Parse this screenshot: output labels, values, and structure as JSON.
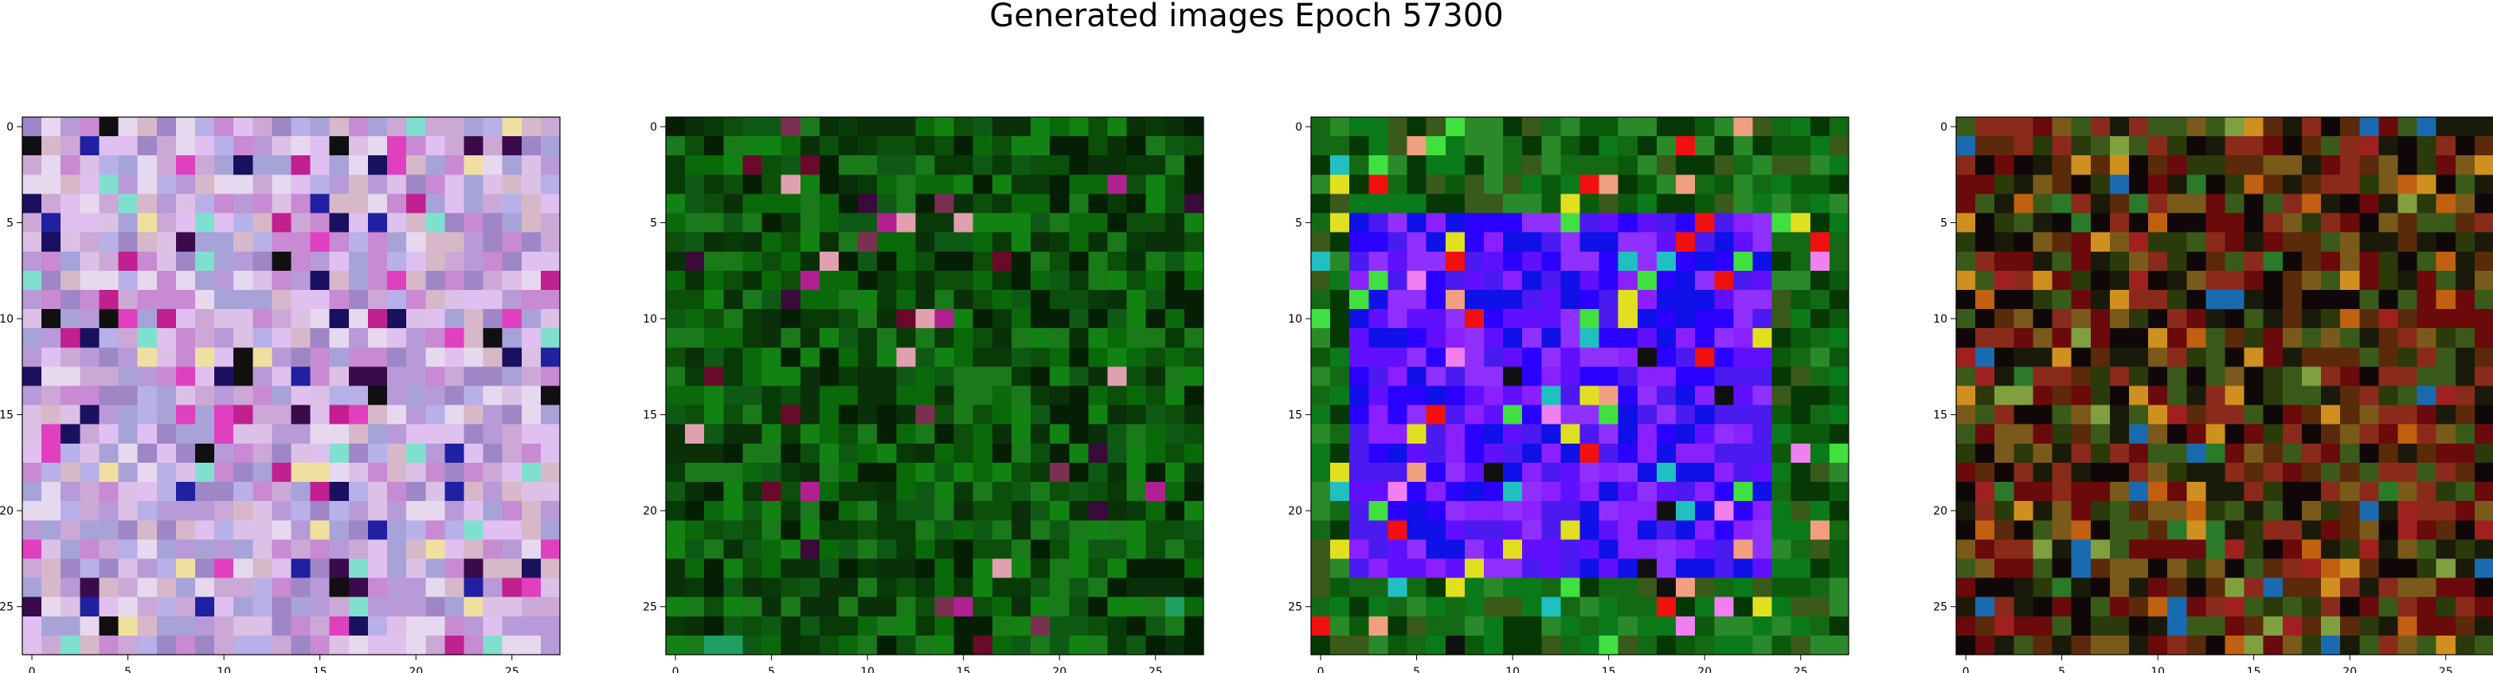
{
  "figure": {
    "title": "Generated images Epoch 57300"
  },
  "chart_data": [
    {
      "type": "heatmap",
      "title": "",
      "xlabel": "",
      "ylabel": "",
      "grid_size": [
        28,
        28
      ],
      "xlim": [
        -0.5,
        27.5
      ],
      "ylim": [
        27.5,
        -0.5
      ],
      "xticks": [
        0,
        5,
        10,
        15,
        20,
        25
      ],
      "yticks": [
        0,
        5,
        10,
        15,
        20,
        25
      ],
      "grid": false,
      "legend": "none",
      "palette": [
        "#cca8d6",
        "#a7a3d9",
        "#dcc0e6",
        "#c88ad2",
        "#b8b0e8",
        "#e6d8ee",
        "#9e86c7",
        "#d6b8c8",
        "#b89ad8",
        "#e0c0f0"
      ],
      "accent_colors": [
        "#1a1060",
        "#3a0a4a",
        "#e040c0",
        "#80e0d0",
        "#101010",
        "#2020a0",
        "#f0e0a0",
        "#c02090"
      ],
      "accent_density": 0.18,
      "description": "noisy pastel pink/lavender/light-blue pixels with scattered dark navy and magenta pixels"
    },
    {
      "type": "heatmap",
      "title": "",
      "xlabel": "",
      "ylabel": "",
      "grid_size": [
        28,
        28
      ],
      "xlim": [
        -0.5,
        27.5
      ],
      "ylim": [
        27.5,
        -0.5
      ],
      "xticks": [
        0,
        5,
        10,
        15,
        20,
        25
      ],
      "yticks": [
        0,
        5,
        10,
        15,
        20,
        25
      ],
      "grid": false,
      "legend": "none",
      "palette": [
        "#0a6a0a",
        "#0b4f0b",
        "#128312",
        "#073a07",
        "#0e5a14",
        "#041f04",
        "#1a7a1a",
        "#0a300a"
      ],
      "accent_colors": [
        "#6a0a2a",
        "#b02090",
        "#7a3050",
        "#e0a0b0",
        "#20a060",
        "#3a0a3a"
      ],
      "accent_density": 0.05,
      "description": "mostly dark green pixels, darker toward the bottom, a few maroon and pink pixels near the center"
    },
    {
      "type": "heatmap",
      "title": "",
      "xlabel": "",
      "ylabel": "",
      "grid_size": [
        28,
        28
      ],
      "xlim": [
        -0.5,
        27.5
      ],
      "ylim": [
        27.5,
        -0.5
      ],
      "xticks": [
        0,
        5,
        10,
        15,
        20,
        25
      ],
      "yticks": [
        0,
        5,
        10,
        15,
        20,
        25
      ],
      "grid": false,
      "legend": "none",
      "palette": [
        "#0a7a1a",
        "#0b5a0b",
        "#2a8a2a",
        "#063806",
        "#146a14",
        "#3a5a1a"
      ],
      "inner_palette": [
        "#2a00ff",
        "#6010ff",
        "#8a20ff",
        "#1010e8",
        "#4a1af0",
        "#9030ff"
      ],
      "inner_region": [
        [
          2,
          5
        ],
        [
          23,
          23
        ]
      ],
      "accent_colors": [
        "#e0e020",
        "#f01010",
        "#f0a080",
        "#101010",
        "#40e040",
        "#f080f0",
        "#20c0c0"
      ],
      "accent_density": 0.12,
      "description": "green border region surrounding a large blue/violet block with scattered yellow, red, and black pixels"
    },
    {
      "type": "heatmap",
      "title": "",
      "xlabel": "",
      "ylabel": "",
      "grid_size": [
        28,
        28
      ],
      "xlim": [
        -0.5,
        27.5
      ],
      "ylim": [
        27.5,
        -0.5
      ],
      "xticks": [
        0,
        5,
        10,
        15,
        20,
        25
      ],
      "yticks": [
        0,
        5,
        10,
        15,
        20,
        25
      ],
      "grid": false,
      "legend": "none",
      "palette": [
        "#5a2a0a",
        "#2a3a0a",
        "#6a0a0a",
        "#1a1a0a",
        "#7a5a1a",
        "#3a5a1a",
        "#8a2a1a",
        "#100808"
      ],
      "accent_colors": [
        "#c06010",
        "#d09020",
        "#2a7a2a",
        "#1a6ab0",
        "#a02020",
        "#80a040"
      ],
      "accent_density": 0.15,
      "description": "noisy dark red, brown, olive and black pixels with orange and some green highlights"
    }
  ]
}
